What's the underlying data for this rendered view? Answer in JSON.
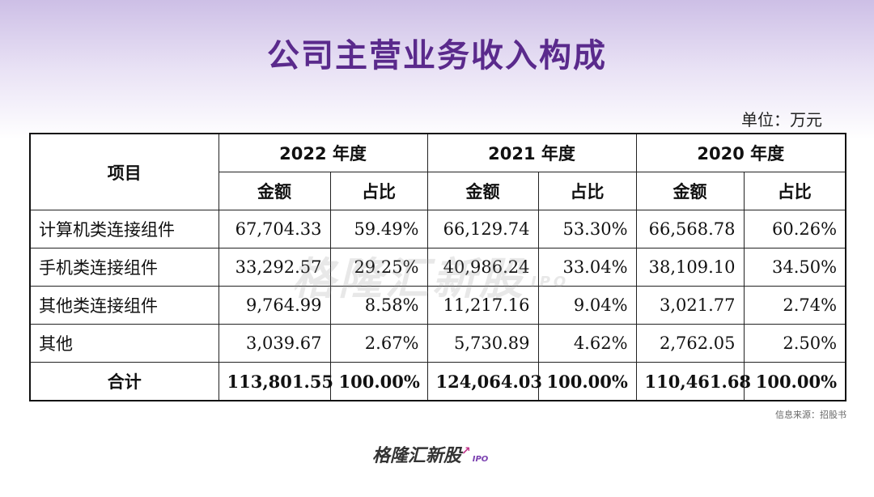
{
  "title": "公司主营业务收入构成",
  "unit": "单位：万元",
  "table": {
    "header_item": "项目",
    "years": [
      "2022 年度",
      "2021 年度",
      "2020 年度"
    ],
    "sub_headers": [
      "金额",
      "占比"
    ],
    "rows": [
      {
        "item": "计算机类连接组件",
        "v": [
          "67,704.33",
          "59.49%",
          "66,129.74",
          "53.30%",
          "66,568.78",
          "60.26%"
        ]
      },
      {
        "item": "手机类连接组件",
        "v": [
          "33,292.57",
          "29.25%",
          "40,986.24",
          "33.04%",
          "38,109.10",
          "34.50%"
        ]
      },
      {
        "item": "其他类连接组件",
        "v": [
          "9,764.99",
          "8.58%",
          "11,217.16",
          "9.04%",
          "3,021.77",
          "2.74%"
        ]
      },
      {
        "item": "其他",
        "v": [
          "3,039.67",
          "2.67%",
          "5,730.89",
          "4.62%",
          "2,762.05",
          "2.50%"
        ]
      }
    ],
    "total": {
      "item": "合计",
      "v": [
        "113,801.55",
        "100.00%",
        "124,064.03",
        "100.00%",
        "110,461.68",
        "100.00%"
      ]
    }
  },
  "source": "信息来源：招股书",
  "watermark": "格隆汇新股",
  "watermark_sub": "IPO",
  "logo": "格隆汇新股",
  "logo_sub": "IPO"
}
